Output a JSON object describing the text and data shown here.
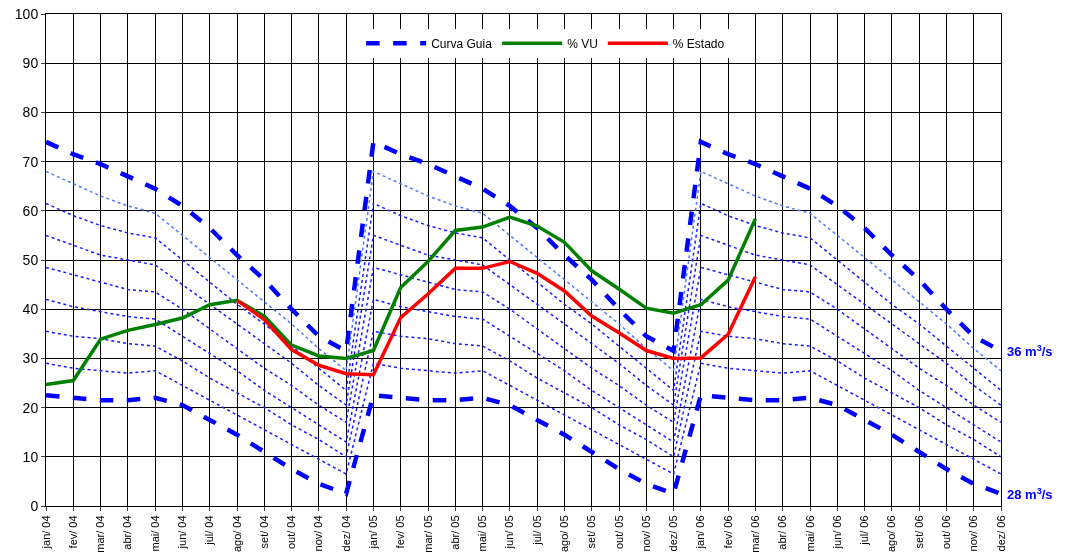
{
  "chart_data": {
    "type": "line",
    "categories": [
      "jan/ 04",
      "fev/ 04",
      "mar/ 04",
      "abr/ 04",
      "mai/ 04",
      "jun/ 04",
      "jul/ 04",
      "ago/ 04",
      "set/ 04",
      "out/ 04",
      "nov/ 04",
      "dez/ 04",
      "jan/ 05",
      "fev/ 05",
      "mar/ 05",
      "abr/ 05",
      "mai/ 05",
      "jun/ 05",
      "jul/ 05",
      "ago/ 05",
      "set/ 05",
      "out/ 05",
      "nov/ 05",
      "dez/ 05",
      "jan/ 06",
      "fev/ 06",
      "mar/ 06",
      "abr/ 06",
      "mai/ 06",
      "jun/ 06",
      "jul/ 06",
      "ago/ 06",
      "set/ 06",
      "out/ 06",
      "nov/ 06",
      "dez/ 06"
    ],
    "series": [
      {
        "name": "Curva Guia",
        "color": "#0000ff",
        "line_style": "dashed",
        "values": [
          74,
          71.5,
          69.5,
          67,
          64.5,
          61,
          56.5,
          51,
          46,
          40,
          34.5,
          31.5,
          74,
          71.5,
          69.5,
          67,
          64.5,
          61,
          56.5,
          51,
          46,
          40,
          34.5,
          31.5,
          74,
          71.5,
          69.5,
          67,
          64.5,
          61,
          56.5,
          51,
          46,
          40,
          34.5,
          31.5
        ]
      },
      {
        "color": "#4d79ff",
        "line_style": "dotted",
        "values": [
          68,
          65.5,
          63,
          61,
          59.5,
          55,
          50.5,
          46,
          41.5,
          37,
          32,
          27.5,
          68,
          65.5,
          63,
          61,
          59.5,
          55,
          50.5,
          46,
          41.5,
          37,
          32,
          27.5,
          68,
          65.5,
          63,
          61,
          59.5,
          55,
          50.5,
          46,
          41.5,
          37,
          32,
          27.5
        ]
      },
      {
        "color": "#1a1aff",
        "line_style": "dotted",
        "values": [
          61.5,
          59,
          57,
          55.5,
          54.5,
          50,
          45.5,
          41,
          37,
          32.5,
          28,
          23.5,
          61.5,
          59,
          57,
          55.5,
          54.5,
          50,
          45.5,
          41,
          37,
          32.5,
          28,
          23.5,
          61.5,
          59,
          57,
          55.5,
          54.5,
          50,
          45.5,
          41,
          37,
          32.5,
          28,
          23.5
        ]
      },
      {
        "color": "#1a1aff",
        "line_style": "dotted",
        "values": [
          55,
          53,
          51,
          50,
          49,
          45,
          41,
          37,
          33,
          29,
          24.5,
          20.5,
          55,
          53,
          51,
          50,
          49,
          45,
          41,
          37,
          33,
          29,
          24.5,
          20.5,
          55,
          53,
          51,
          50,
          49,
          45,
          41,
          37,
          33,
          29,
          24.5,
          20.5
        ]
      },
      {
        "color": "#1a1aff",
        "line_style": "dotted",
        "values": [
          48.5,
          47,
          45.5,
          44,
          43.5,
          40,
          36,
          32,
          28,
          24.5,
          20.5,
          17,
          48.5,
          47,
          45.5,
          44,
          43.5,
          40,
          36,
          32,
          28,
          24.5,
          20.5,
          17,
          48.5,
          47,
          45.5,
          44,
          43.5,
          40,
          36,
          32,
          28,
          24.5,
          20.5,
          17
        ]
      },
      {
        "color": "#1a1aff",
        "line_style": "dotted",
        "values": [
          42,
          40.5,
          39.5,
          38.5,
          38,
          34.5,
          31,
          27.5,
          23.5,
          20,
          16.5,
          13,
          42,
          40.5,
          39.5,
          38.5,
          38,
          34.5,
          31,
          27.5,
          23.5,
          20,
          16.5,
          13,
          42,
          40.5,
          39.5,
          38.5,
          38,
          34.5,
          31,
          27.5,
          23.5,
          20,
          16.5,
          13
        ]
      },
      {
        "color": "#1a1aff",
        "line_style": "dotted",
        "values": [
          35.5,
          34.5,
          34,
          33,
          32.5,
          29.5,
          26,
          23,
          20,
          16.5,
          13.5,
          10,
          35.5,
          34.5,
          34,
          33,
          32.5,
          29.5,
          26,
          23,
          20,
          16.5,
          13.5,
          10,
          35.5,
          34.5,
          34,
          33,
          32.5,
          29.5,
          26,
          23,
          20,
          16.5,
          13.5,
          10
        ]
      },
      {
        "color": "#1a1aff",
        "line_style": "dotted",
        "values": [
          29,
          28,
          27.5,
          27,
          27.5,
          24.5,
          21.5,
          18.5,
          15.5,
          12.5,
          9.5,
          6.5,
          29,
          28,
          27.5,
          27,
          27.5,
          24.5,
          21.5,
          18.5,
          15.5,
          12.5,
          9.5,
          6.5,
          29,
          28,
          27.5,
          27,
          27.5,
          24.5,
          21.5,
          18.5,
          15.5,
          12.5,
          9.5,
          6.5
        ]
      },
      {
        "color": "#0000ff",
        "line_style": "dashed",
        "values": [
          22.5,
          22,
          21.5,
          21.5,
          22,
          20.5,
          17.5,
          14.5,
          11,
          7.5,
          4.5,
          2.5,
          22.5,
          22,
          21.5,
          21.5,
          22,
          20.5,
          17.5,
          14.5,
          11,
          7.5,
          4.5,
          2.5,
          22.5,
          22,
          21.5,
          21.5,
          22,
          20.5,
          17.5,
          14.5,
          11,
          7.5,
          4.5,
          2.5
        ]
      },
      {
        "name": "% VU",
        "color": "#008000",
        "line_style": "solid",
        "values": [
          24.7,
          25.5,
          33.9,
          35.7,
          36.9,
          38.2,
          40.9,
          41.8,
          38.6,
          32.7,
          30.5,
          30,
          31.6,
          44.4,
          49.7,
          56,
          56.7,
          58.7,
          56.9,
          53.6,
          47.8,
          44.1,
          40.2,
          39.2,
          40.9,
          45.9,
          58.4,
          null,
          null,
          null,
          null,
          null,
          null,
          null,
          null,
          null
        ]
      },
      {
        "name": "% Estado",
        "color": "#ff0000",
        "line_style": "solid",
        "values": [
          null,
          null,
          null,
          null,
          null,
          null,
          null,
          41.8,
          37.9,
          31.8,
          28.6,
          26.9,
          26.7,
          38.3,
          43.1,
          48.3,
          48.3,
          49.7,
          47.3,
          43.7,
          38.6,
          35.2,
          31.6,
          30,
          30.1,
          34.9,
          46.6,
          null,
          null,
          null,
          null,
          null,
          null,
          null,
          null,
          null
        ]
      }
    ],
    "ylim": [
      0,
      100
    ],
    "yticks": [
      0,
      10,
      20,
      30,
      40,
      50,
      60,
      70,
      80,
      90,
      100
    ],
    "grid": true,
    "legend": "top",
    "marker": "none",
    "annotations": [
      {
        "text": "36 m$^{3}$/s",
        "x": "dez/ 06",
        "y": 31.5
      },
      {
        "text": "28 m$^{3}$/s",
        "x": "dez/ 06",
        "y": 2.5
      }
    ]
  }
}
